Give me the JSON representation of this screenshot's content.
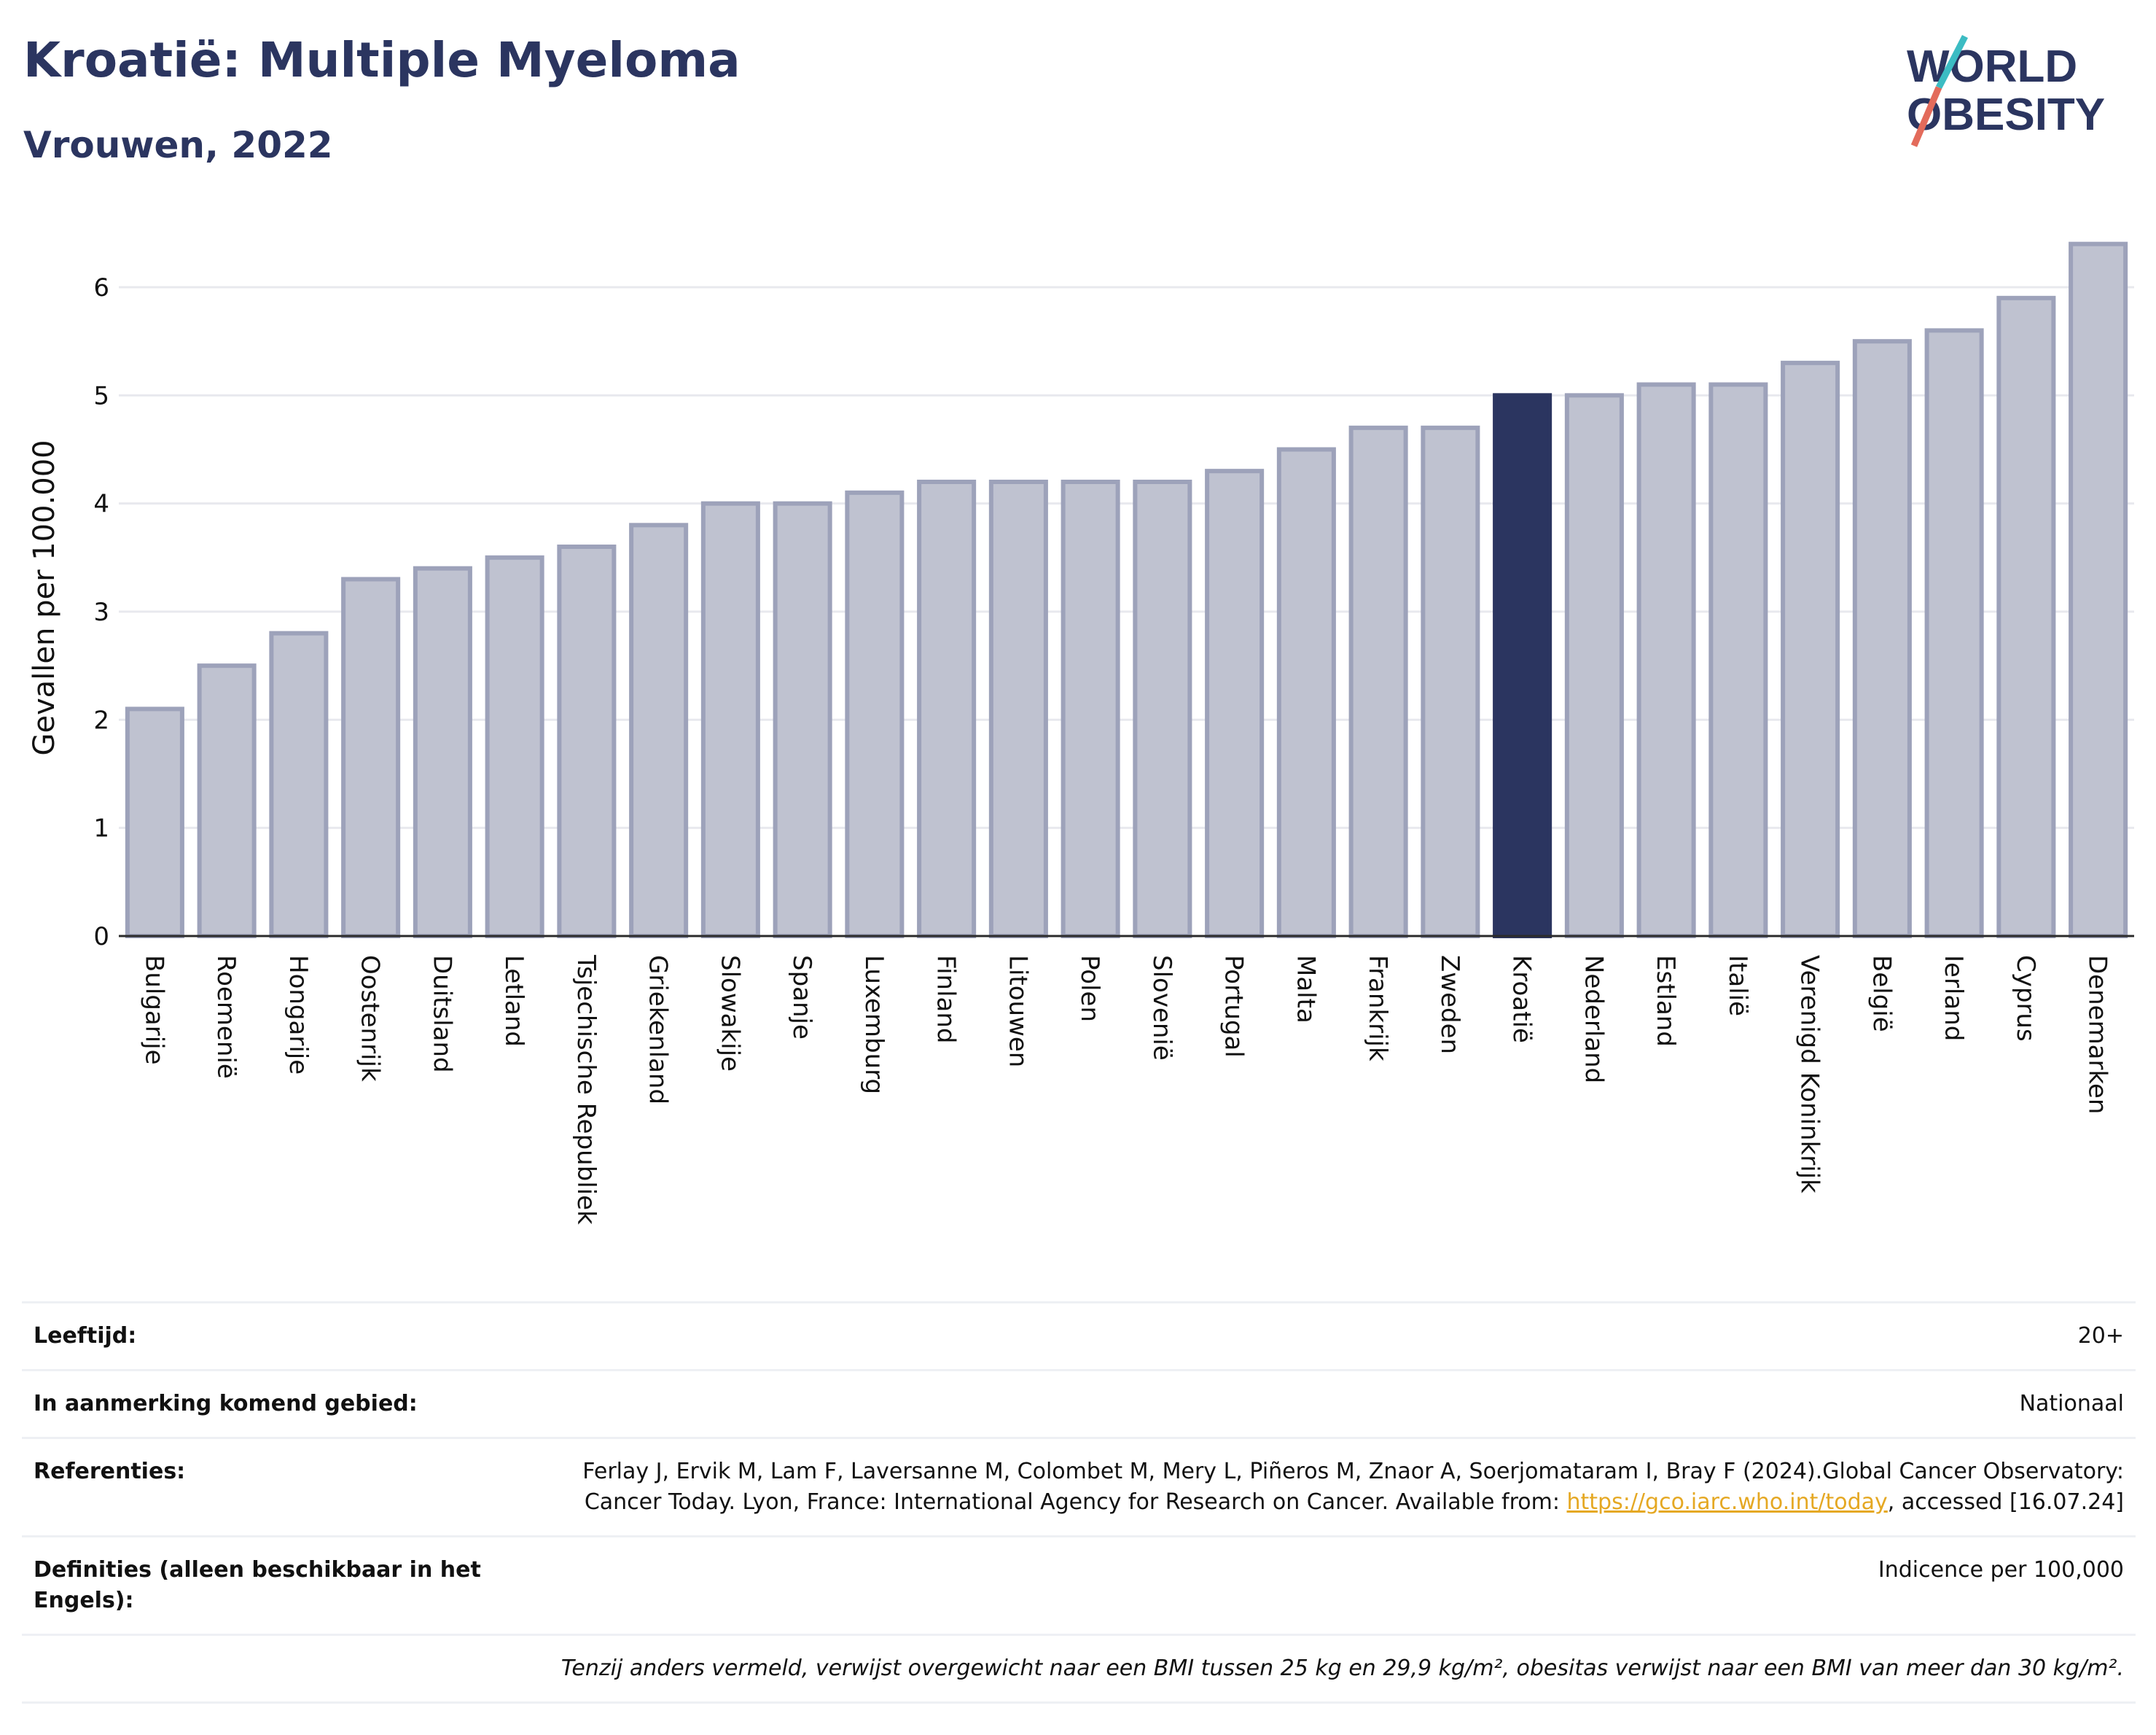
{
  "header": {
    "title": "Kroatië: Multiple Myeloma",
    "subtitle": "Vrouwen, 2022"
  },
  "logo": {
    "line1": "WORLD",
    "line2": "OBESITY"
  },
  "colors": {
    "bar": "#bfc2d0",
    "bar_edge": "#9da2ba",
    "highlight": "#2b3560",
    "title": "#2b3560",
    "link": "#e5a823"
  },
  "chart_data": {
    "type": "bar",
    "ylabel": "Gevallen per 100.000",
    "ylim": [
      0,
      6.6
    ],
    "yticks": [
      0,
      1,
      2,
      3,
      4,
      5,
      6
    ],
    "grid": true,
    "highlight": "Kroatië",
    "categories": [
      "Bulgarije",
      "Roemenië",
      "Hongarije",
      "Oostenrijk",
      "Duitsland",
      "Letland",
      "Tsjechische Republiek",
      "Griekenland",
      "Slowakije",
      "Spanje",
      "Luxemburg",
      "Finland",
      "Litouwen",
      "Polen",
      "Slovenië",
      "Portugal",
      "Malta",
      "Frankrijk",
      "Zweden",
      "Kroatië",
      "Nederland",
      "Estland",
      "Italië",
      "Verenigd Koninkrijk",
      "België",
      "Ierland",
      "Cyprus",
      "Denemarken"
    ],
    "values": [
      2.1,
      2.5,
      2.8,
      3.3,
      3.4,
      3.5,
      3.6,
      3.8,
      4.0,
      4.0,
      4.1,
      4.2,
      4.2,
      4.2,
      4.2,
      4.3,
      4.5,
      4.7,
      4.7,
      5.0,
      5.0,
      5.1,
      5.1,
      5.3,
      5.5,
      5.6,
      5.9,
      6.4
    ]
  },
  "meta": {
    "age_label": "Leeftijd:",
    "age_value": "20+",
    "area_label": "In aanmerking komend gebied:",
    "area_value": "Nationaal",
    "ref_label": "Referenties:",
    "ref_text_1": "Ferlay J, Ervik M, Lam F, Laversanne M, Colombet M, Mery L, Piñeros M, Znaor A, Soerjomataram I, Bray F (2024).Global Cancer Observatory: Cancer Today. Lyon, France: International Agency for Research on Cancer. Available from: ",
    "ref_link": "https://gco.iarc.who.int/today",
    "ref_text_2": ", accessed [16.07.24]",
    "def_label": "Definities (alleen beschikbaar in het Engels):",
    "def_value": "Indicence per 100,000",
    "note": "Tenzij anders vermeld, verwijst overgewicht naar een BMI tussen 25 kg en 29,9 kg/m², obesitas verwijst naar een BMI van meer dan 30 kg/m²."
  }
}
